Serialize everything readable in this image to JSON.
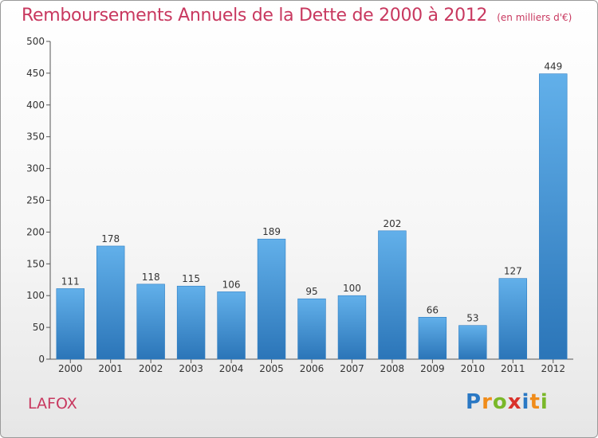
{
  "title": "Remboursements Annuels de la Dette de 2000 à 2012",
  "unit_note": "(en milliers d'€)",
  "commune": "LAFOX",
  "logo": {
    "letters": [
      "P",
      "r",
      "o",
      "x",
      "i",
      "t",
      "i"
    ],
    "colors": [
      "#2a78c4",
      "#f08c1a",
      "#7ab829",
      "#d9322b",
      "#2a78c4",
      "#f08c1a",
      "#7ab829"
    ]
  },
  "colors": {
    "bar": "#3f93d8",
    "bar_light": "#62b0ea",
    "bar_dark": "#2b75b8",
    "title": "#c8385f"
  },
  "chart_data": {
    "type": "bar",
    "title": "Remboursements Annuels de la Dette de 2000 à 2012",
    "categories": [
      "2000",
      "2001",
      "2002",
      "2003",
      "2004",
      "2005",
      "2006",
      "2007",
      "2008",
      "2009",
      "2010",
      "2011",
      "2012"
    ],
    "values": [
      111,
      178,
      118,
      115,
      106,
      189,
      95,
      100,
      202,
      66,
      53,
      127,
      449
    ],
    "ylim": [
      0,
      500
    ],
    "yticks": [
      0,
      50,
      100,
      150,
      200,
      250,
      300,
      350,
      400,
      450,
      500
    ],
    "grid": false,
    "xlabel": "",
    "ylabel": ""
  }
}
